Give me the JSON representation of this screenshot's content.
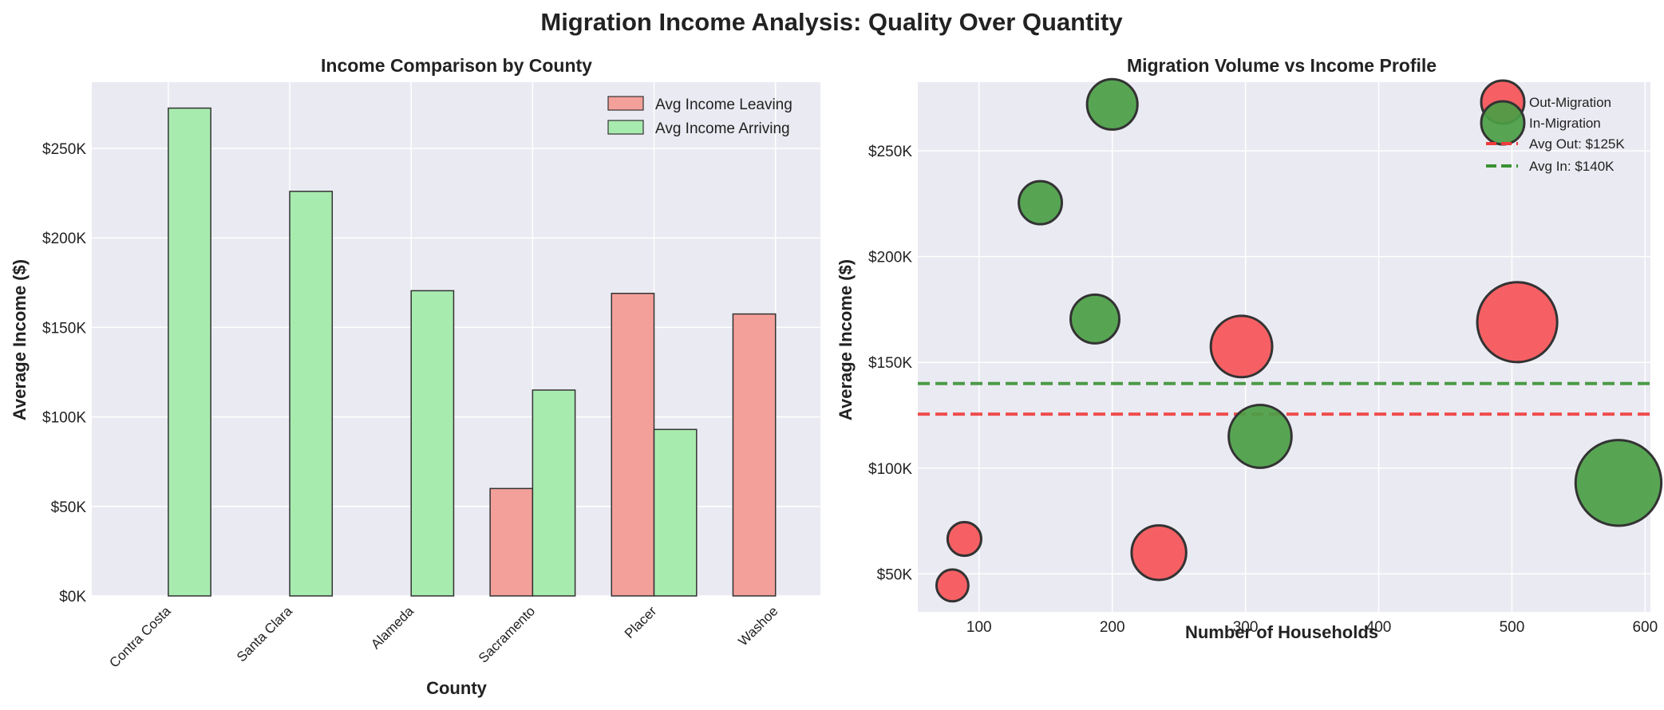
{
  "suptitle": "Migration Income Analysis: Quality Over Quantity",
  "colors": {
    "leaving_bar": "#f4a09a",
    "arriving_bar": "#a8ebaf",
    "out_migration": "#f7595c",
    "in_migration": "#4a9e45",
    "avg_out_line": "#ef3b3b",
    "avg_in_line": "#3a9133",
    "plot_bg": "#eaeaf2",
    "grid": "#ffffff"
  },
  "chart_data": [
    {
      "type": "bar",
      "title": "Income Comparison by County",
      "xlabel": "County",
      "ylabel": "Average Income ($)",
      "categories": [
        "Contra Costa",
        "Santa Clara",
        "Alameda",
        "Sacramento",
        "Placer",
        "Washoe"
      ],
      "series": [
        {
          "name": "Avg Income Leaving",
          "values": [
            0,
            0,
            0,
            60000,
            169000,
            157500
          ]
        },
        {
          "name": "Avg Income Arriving",
          "values": [
            272500,
            226000,
            170500,
            115000,
            93000,
            0
          ]
        }
      ],
      "ylim": [
        0,
        287000
      ],
      "yticks": [
        0,
        50000,
        100000,
        150000,
        200000,
        250000
      ],
      "ytick_labels": [
        "$0K",
        "$50K",
        "$100K",
        "$150K",
        "$200K",
        "$250K"
      ],
      "legend_position": "top-right",
      "grid": true
    },
    {
      "type": "scatter",
      "title": "Migration Volume vs Income Profile",
      "xlabel": "Number of Households",
      "ylabel": "Average Income ($)",
      "xlim": [
        54,
        604
      ],
      "ylim": [
        32000,
        282500
      ],
      "xticks": [
        100,
        200,
        300,
        400,
        500,
        600
      ],
      "xtick_labels": [
        "100",
        "200",
        "300",
        "400",
        "500",
        "600"
      ],
      "yticks": [
        50000,
        100000,
        150000,
        200000,
        250000
      ],
      "ytick_labels": [
        "$50K",
        "$100K",
        "$150K",
        "$200K",
        "$250K"
      ],
      "series": [
        {
          "name": "Out-Migration",
          "x": [
            80,
            89,
            235,
            297,
            504
          ],
          "y": [
            44500,
            66500,
            60000,
            157500,
            169000
          ]
        },
        {
          "name": "In-Migration",
          "x": [
            146,
            187,
            200,
            311,
            580
          ],
          "y": [
            225500,
            170500,
            272000,
            115000,
            93000
          ]
        }
      ],
      "reference_lines": [
        {
          "name": "Avg Out: $125K",
          "y": 125500
        },
        {
          "name": "Avg In: $140K",
          "y": 140000
        }
      ],
      "legend_position": "top-right",
      "grid": true
    }
  ]
}
